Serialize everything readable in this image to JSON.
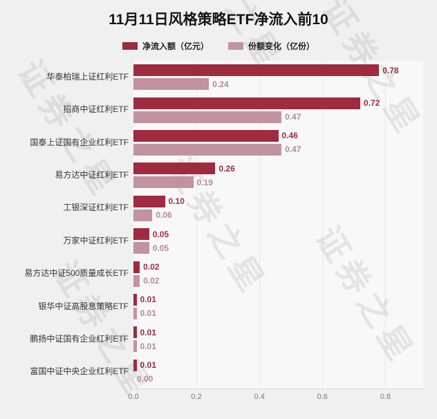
{
  "title": "11月11日风格策略ETF净流入前10",
  "watermark": "证券之星",
  "legend": {
    "items": [
      {
        "label": "净流入额（亿元）",
        "color": "#9e2b3e"
      },
      {
        "label": "份额变化（亿份）",
        "color": "#c2939e"
      }
    ]
  },
  "chart_data": {
    "type": "bar",
    "orientation": "horizontal",
    "title": "11月11日风格策略ETF净流入前10",
    "categories": [
      "华泰柏瑞上证红利ETF",
      "招商中证红利ETF",
      "国泰上证国有企业红利ETF",
      "易方达中证红利ETF",
      "工银深证红利ETF",
      "万家中证红利ETF",
      "易方达中证500质量成长ETF",
      "银华中证高股息策略ETF",
      "鹏扬中证国有企业红利ETF",
      "富国中证中央企业红利ETF"
    ],
    "series": [
      {
        "name": "净流入额（亿元）",
        "color": "#9e2b3e",
        "label_color": "#9e2b3e",
        "values": [
          0.78,
          0.72,
          0.46,
          0.26,
          0.1,
          0.05,
          0.02,
          0.01,
          0.01,
          0.01
        ]
      },
      {
        "name": "份额变化（亿份）",
        "color": "#c2939e",
        "label_color": "#b48a95",
        "values": [
          0.24,
          0.47,
          0.47,
          0.19,
          0.06,
          0.05,
          0.02,
          0.01,
          0.01,
          0.0
        ]
      }
    ],
    "xlim": [
      0,
      0.92
    ],
    "xticks": [
      0,
      0.2,
      0.4,
      0.6,
      0.8
    ],
    "grid": true,
    "legend_position": "top"
  }
}
